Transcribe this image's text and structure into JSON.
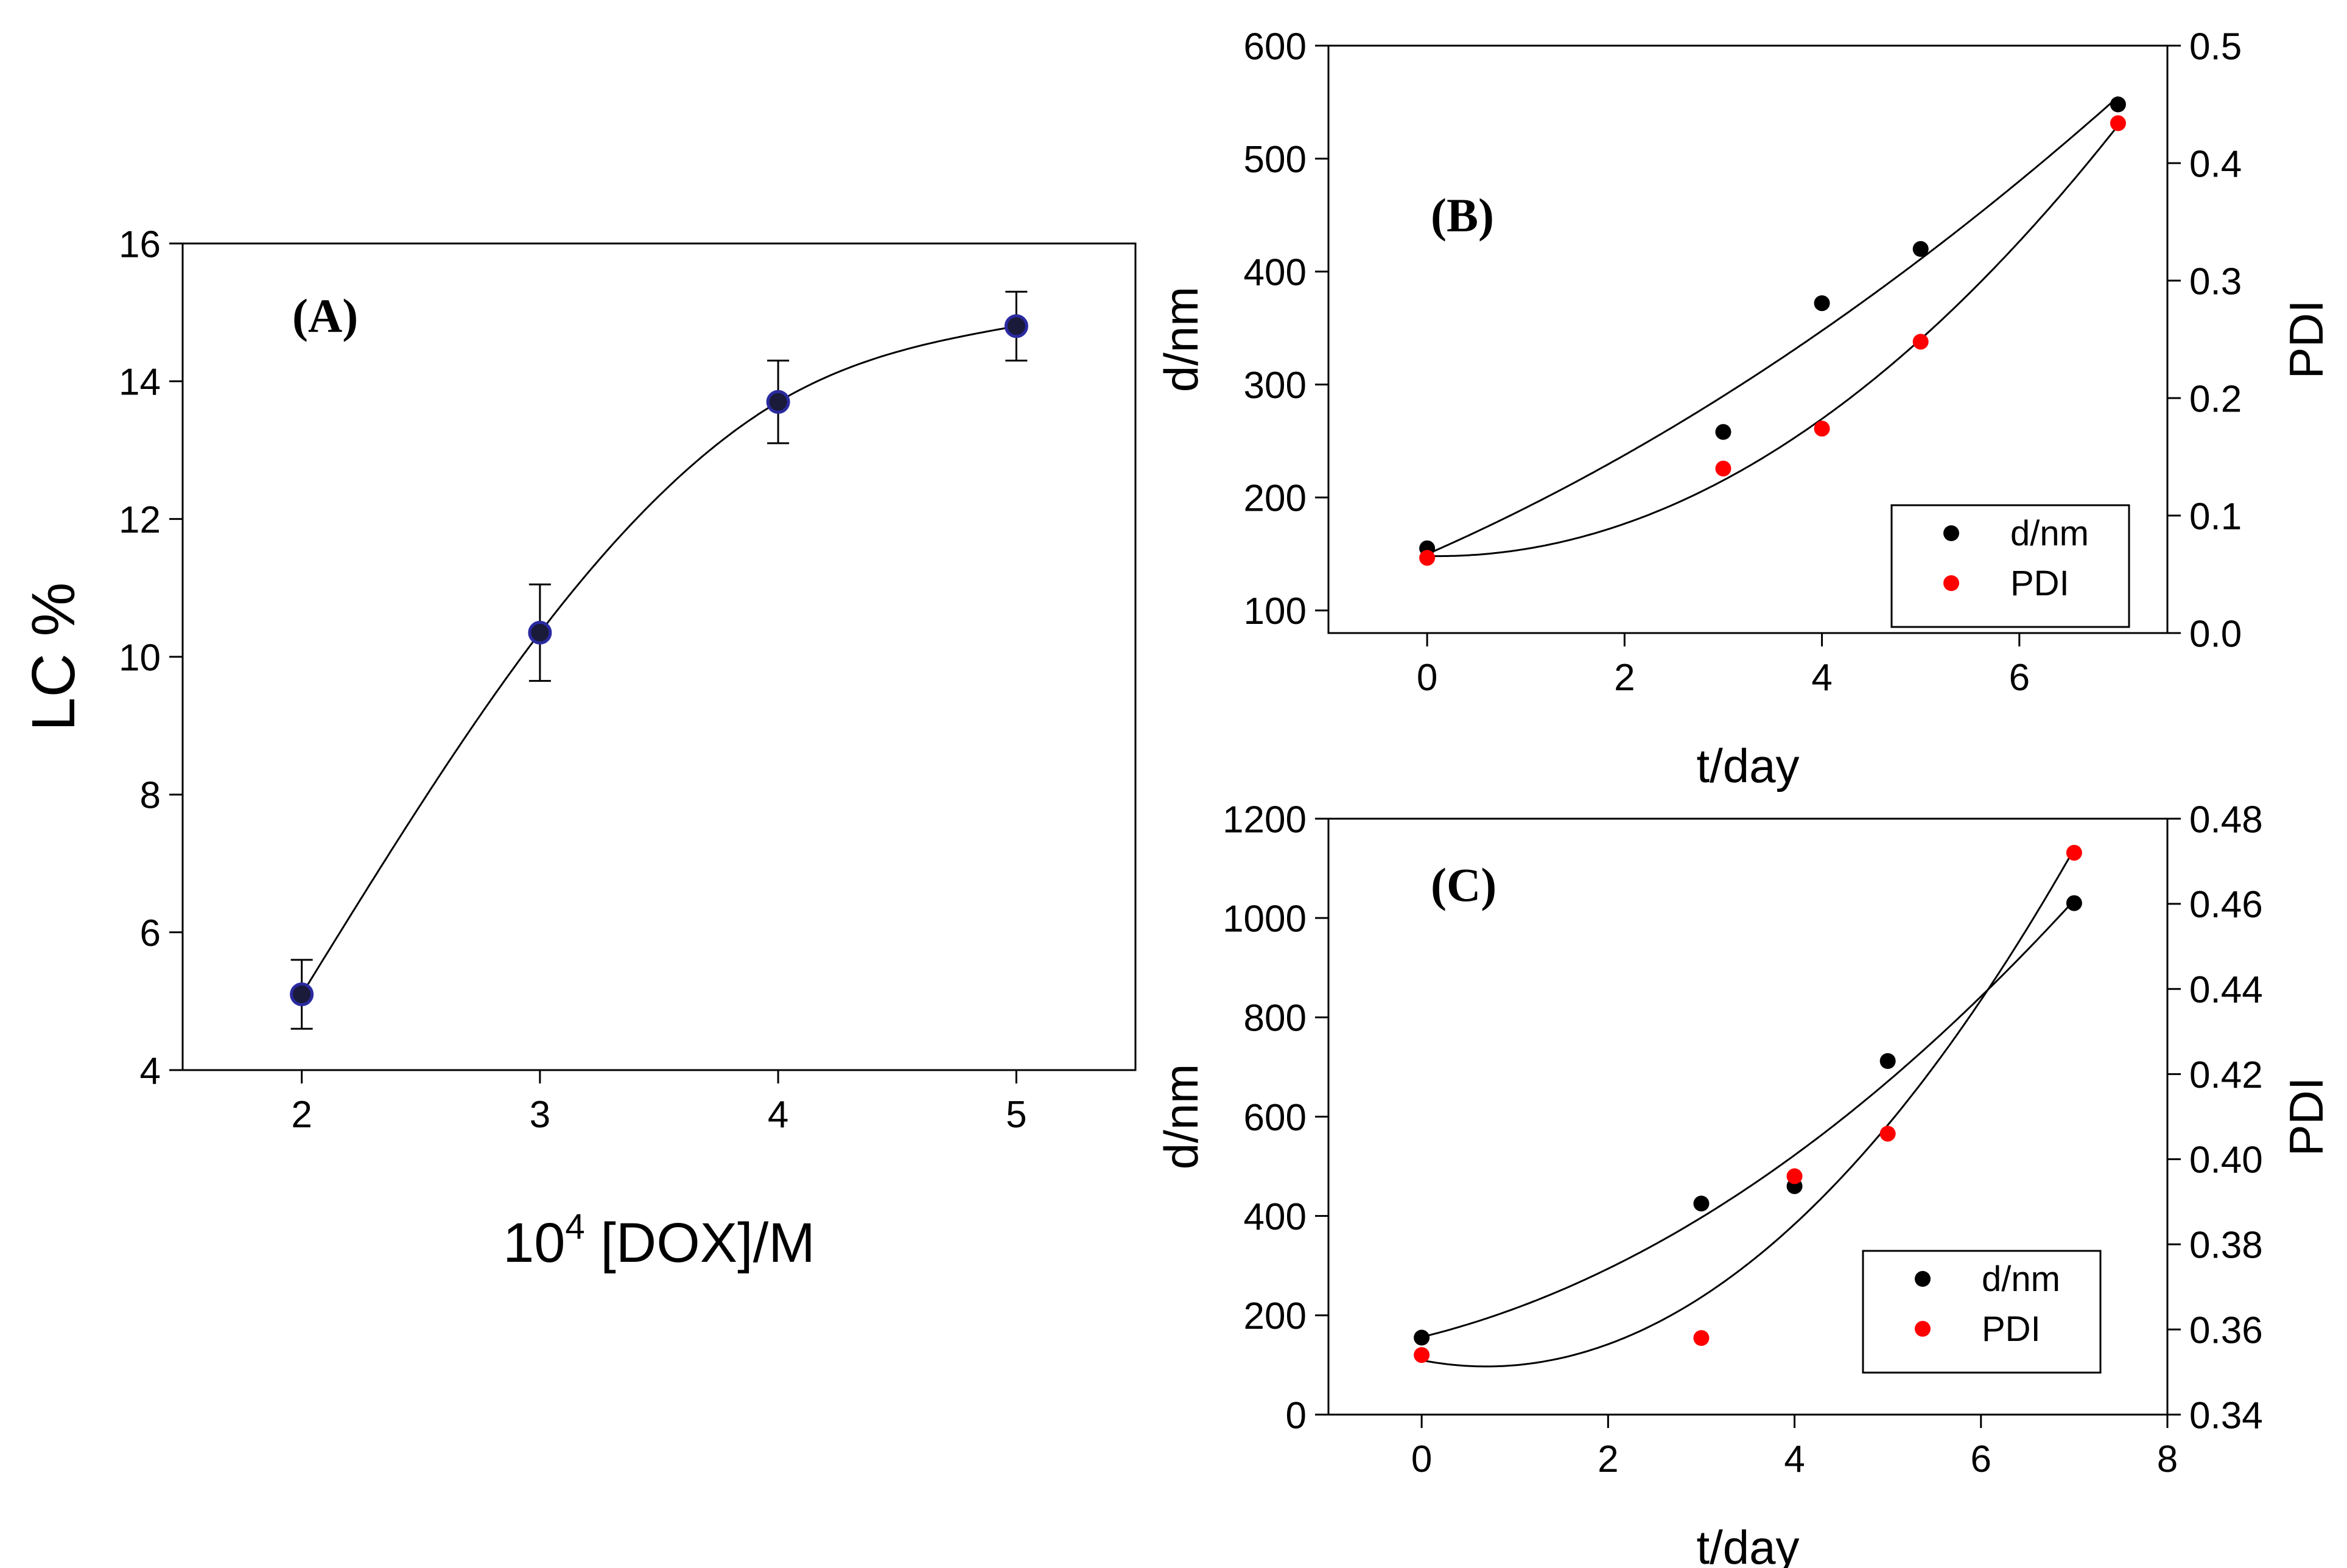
{
  "figure": {
    "panels": [
      "A",
      "B",
      "C"
    ]
  },
  "colors": {
    "black": "#000000",
    "red": "#ff0000",
    "marker_blue_edge": "#2a2aa0"
  },
  "chart_data": [
    {
      "id": "A",
      "type": "scatter",
      "annotation": "(A)",
      "xlabel_sup": "4",
      "xlabel_base": "10",
      "xlabel_rest": " [DOX]/M",
      "ylabel": "LC %",
      "xlim": [
        1.5,
        5.5
      ],
      "ylim": [
        4,
        16
      ],
      "xticks": [
        2,
        3,
        4,
        5
      ],
      "yticks": [
        4,
        6,
        8,
        10,
        12,
        14,
        16
      ],
      "grid": false,
      "x": [
        2,
        3,
        4,
        5
      ],
      "y": [
        5.1,
        10.35,
        13.7,
        14.8
      ],
      "yerr": [
        0.5,
        0.7,
        0.6,
        0.5
      ],
      "curve": "smooth fit"
    },
    {
      "id": "B",
      "type": "scatter",
      "annotation": "(B)",
      "xlabel": "t/day",
      "ylabel_left": "d/nm",
      "ylabel_right": "PDI",
      "xlim": [
        -1,
        7.5
      ],
      "ylim_left": [
        80,
        600
      ],
      "ylim_right": [
        0.0,
        0.5
      ],
      "xticks": [
        0,
        2,
        4,
        6
      ],
      "yticks_left": [
        100,
        200,
        300,
        400,
        500,
        600
      ],
      "yticks_right": [
        "0.0",
        "0.1",
        "0.2",
        "0.3",
        "0.4",
        "0.5"
      ],
      "grid": false,
      "legend_position": "bottom-right",
      "series": [
        {
          "name": "d/nm",
          "axis": "left",
          "color": "#000000",
          "x": [
            0,
            3,
            4,
            5,
            7
          ],
          "y": [
            155,
            258,
            372,
            420,
            548
          ]
        },
        {
          "name": "PDI",
          "axis": "right",
          "color": "#ff0000",
          "x": [
            0,
            3,
            4,
            5,
            7
          ],
          "y": [
            0.064,
            0.14,
            0.174,
            0.248,
            0.434
          ]
        }
      ]
    },
    {
      "id": "C",
      "type": "scatter",
      "annotation": "(C)",
      "xlabel": "t/day",
      "ylabel_left": "d/nm",
      "ylabel_right": "PDI",
      "xlim": [
        -1,
        8
      ],
      "ylim_left": [
        0,
        1200
      ],
      "ylim_right": [
        0.34,
        0.48
      ],
      "xticks": [
        0,
        2,
        4,
        6,
        8
      ],
      "yticks_left": [
        0,
        200,
        400,
        600,
        800,
        1000,
        1200
      ],
      "yticks_right": [
        "0.34",
        "0.36",
        "0.38",
        "0.40",
        "0.42",
        "0.44",
        "0.46",
        "0.48"
      ],
      "grid": false,
      "legend_position": "bottom-right",
      "series": [
        {
          "name": "d/nm",
          "axis": "left",
          "color": "#000000",
          "x": [
            0,
            3,
            4,
            5,
            7
          ],
          "y": [
            155,
            425,
            460,
            712,
            1030
          ]
        },
        {
          "name": "PDI",
          "axis": "right",
          "color": "#ff0000",
          "x": [
            0,
            3,
            4,
            5,
            7
          ],
          "y": [
            0.354,
            0.358,
            0.396,
            0.406,
            0.472
          ]
        }
      ]
    }
  ]
}
